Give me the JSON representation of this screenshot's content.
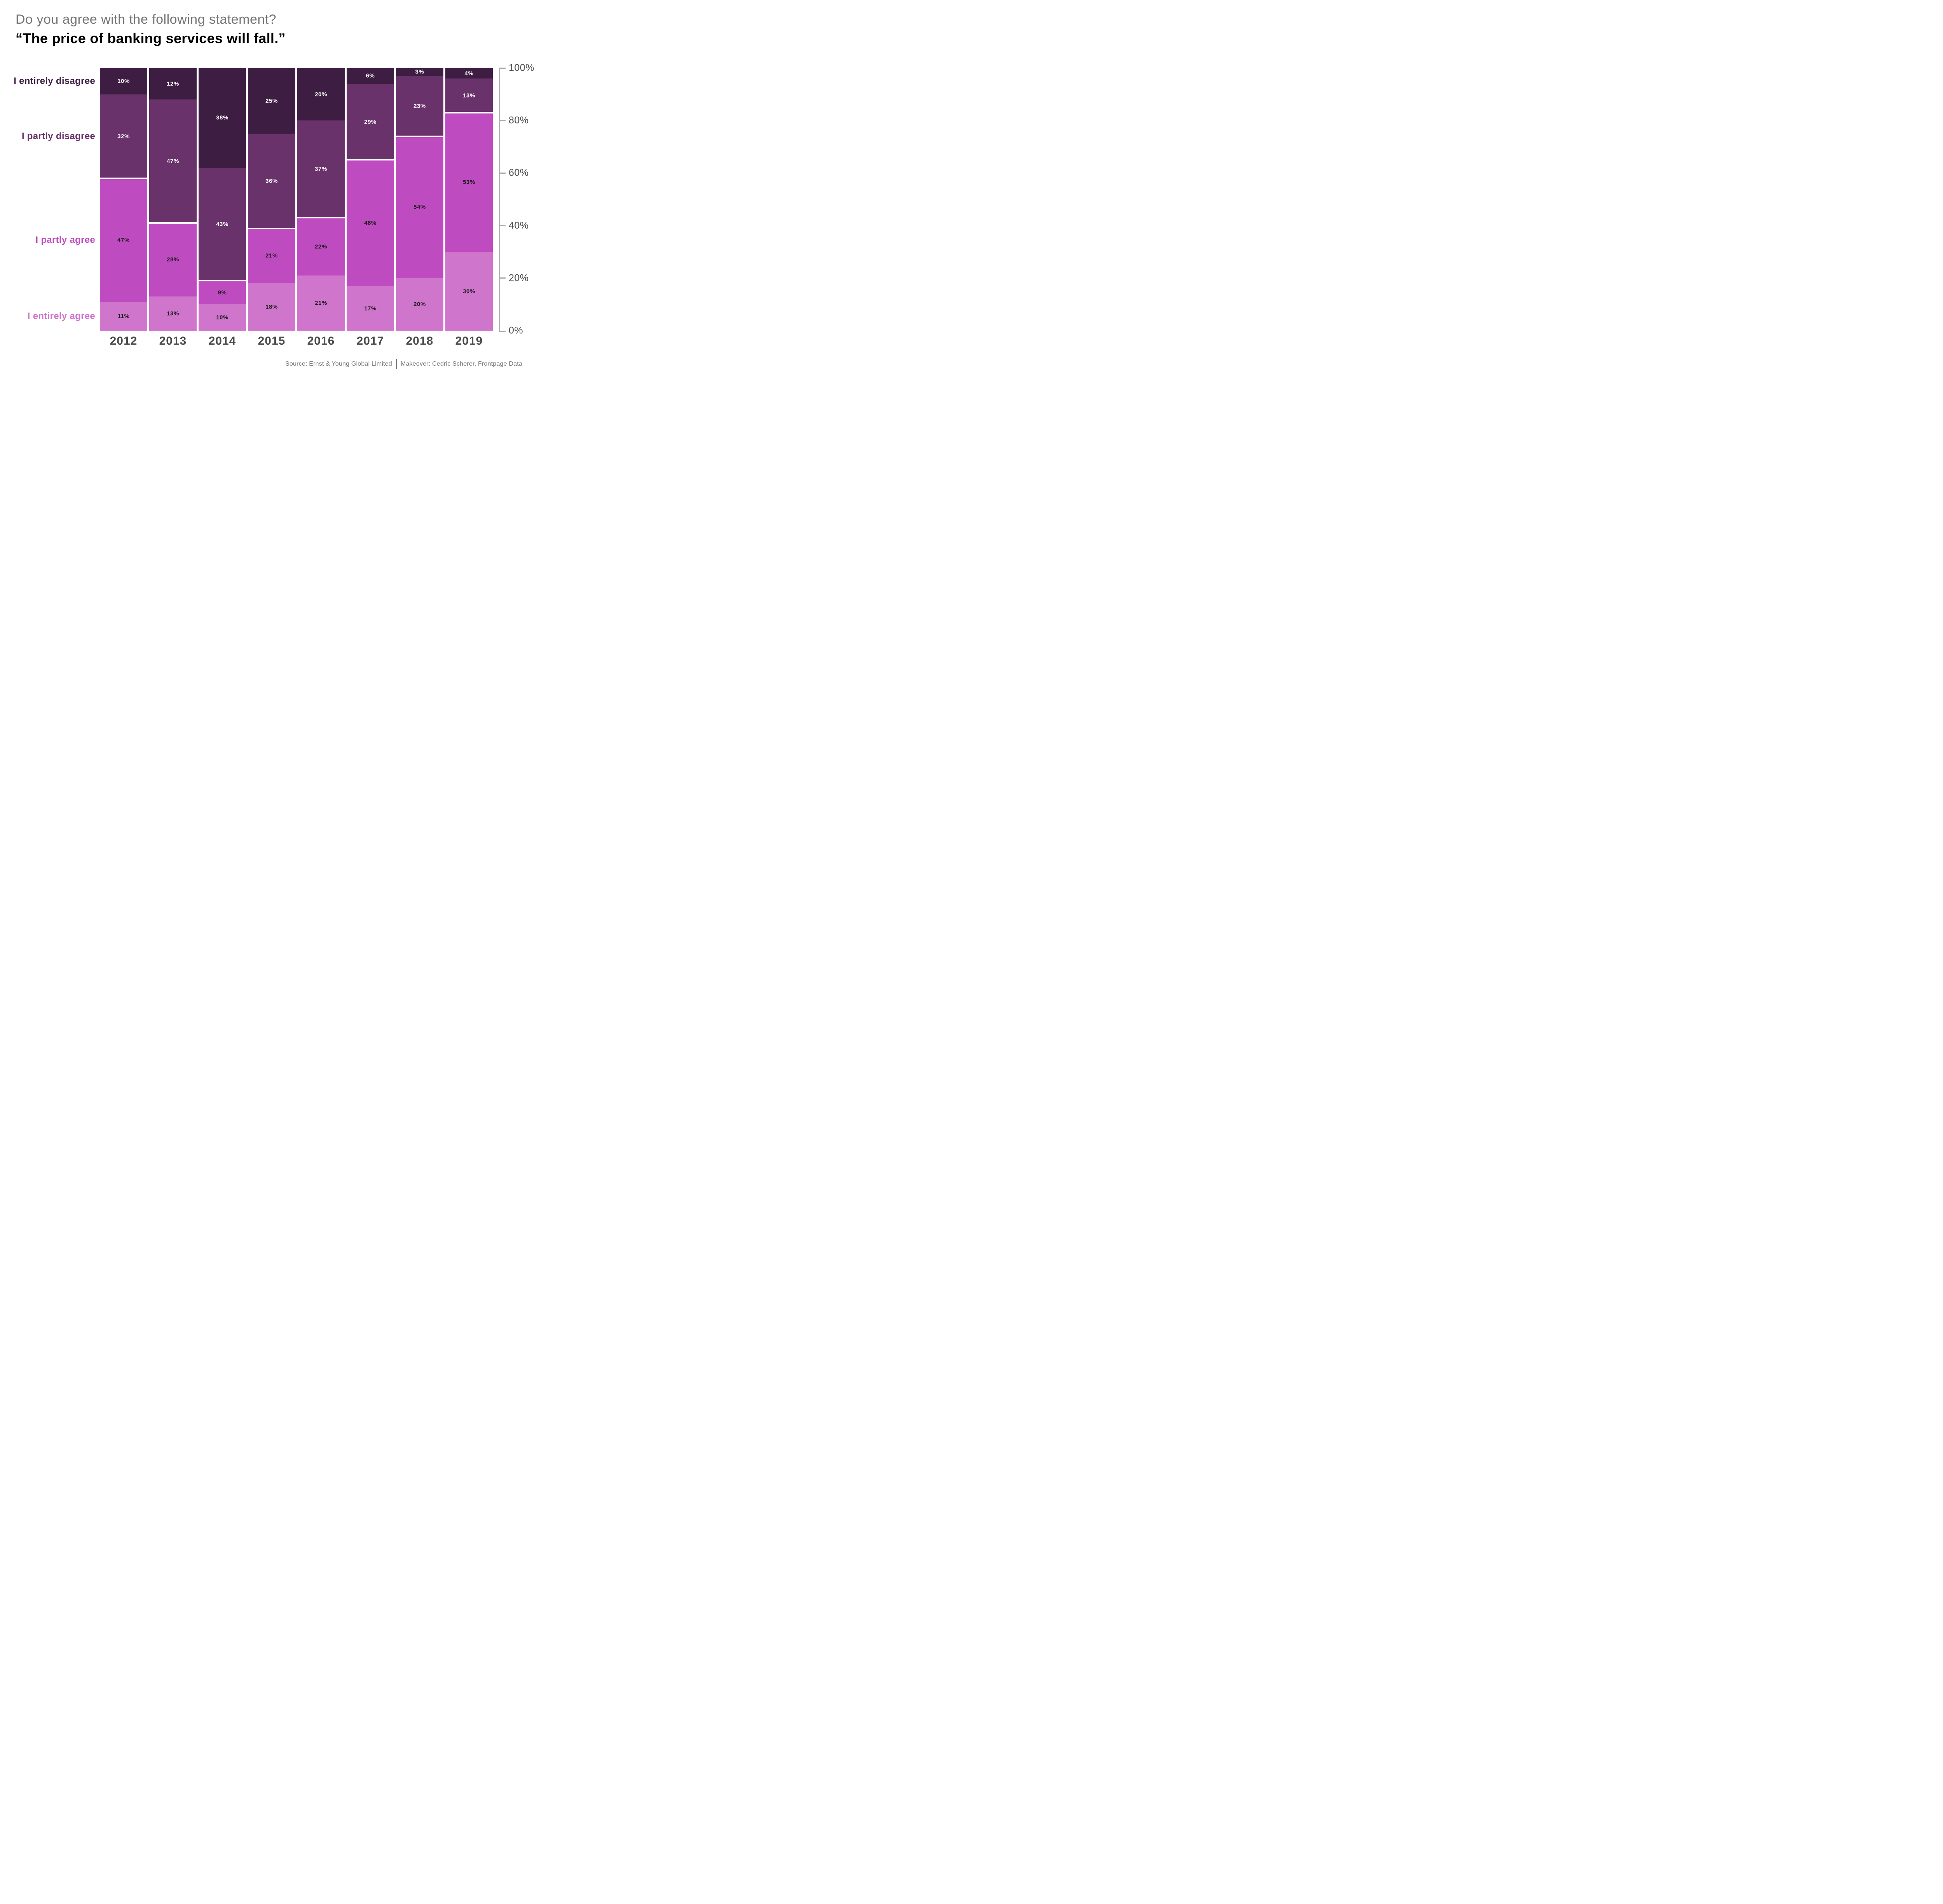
{
  "title": {
    "question": "Do you agree with the following statement?",
    "statement": "“The price of banking services will fall.”"
  },
  "source": {
    "label": "Source: Ernst & Young Global Limited",
    "separator": "|",
    "makeover": "Makeover: Cedric Scherer, Frontpage Data"
  },
  "chart_data": {
    "type": "bar",
    "variant": "stacked-100-percent-column",
    "unit": "%",
    "grid": "off",
    "categories": [
      "2012",
      "2013",
      "2014",
      "2015",
      "2016",
      "2017",
      "2018",
      "2019"
    ],
    "series": [
      {
        "name": "I entirely agree",
        "color": "#CF75CC",
        "label_color": "#1a1a1a",
        "values": [
          11,
          13,
          10,
          18,
          21,
          17,
          20,
          30
        ]
      },
      {
        "name": "I partly agree",
        "color": "#BF4BC1",
        "label_color": "#1a1a1a",
        "values": [
          47,
          28,
          9,
          21,
          22,
          48,
          54,
          53
        ]
      },
      {
        "name": "I partly disagree",
        "color": "#6A326B",
        "label_color": "#ffffff",
        "values": [
          32,
          47,
          43,
          36,
          37,
          29,
          23,
          13
        ]
      },
      {
        "name": "I entirely disagree",
        "color": "#3D1E42",
        "label_color": "#ffffff",
        "values": [
          10,
          12,
          38,
          25,
          20,
          6,
          3,
          4
        ]
      }
    ],
    "group_divider": {
      "between": [
        "I partly agree",
        "I partly disagree"
      ],
      "color": "#ffffff"
    },
    "y_axis": {
      "side": "right",
      "min": 0,
      "max": 100,
      "tick_values": [
        0,
        20,
        40,
        60,
        80,
        100
      ],
      "tick_labels": [
        "0%",
        "20%",
        "40%",
        "60%",
        "80%",
        "100%"
      ],
      "line_color": "#ababab",
      "label_color": "#4d4d4d"
    },
    "x_axis": {
      "label_color": "#4a4a4a"
    },
    "legend_position": "left-category-labels"
  }
}
